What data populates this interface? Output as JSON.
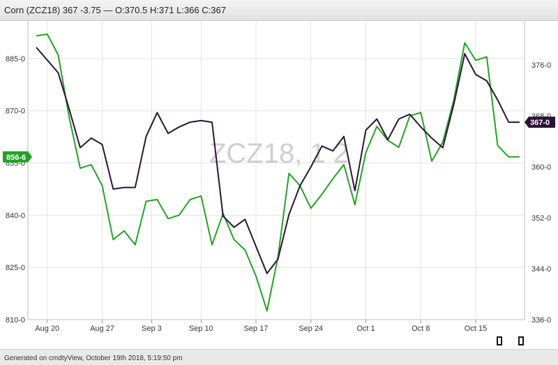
{
  "header": {
    "title": "Corn (ZCZ18) 367 -3.75 — O:370.5 H:371 L:366 C:367"
  },
  "footer": {
    "text": "Generated on cmdtyView, October 19th 2018, 5:19:50 pm"
  },
  "chart_data": {
    "type": "line",
    "watermark": "ZCZ18, 1 2",
    "grid": true,
    "x": [
      "Aug 17",
      "Aug 20",
      "Aug 21",
      "Aug 22",
      "Aug 23",
      "Aug 24",
      "Aug 27",
      "Aug 28",
      "Aug 29",
      "Aug 30",
      "Aug 31",
      "Sep 4",
      "Sep 5",
      "Sep 6",
      "Sep 7",
      "Sep 10",
      "Sep 11",
      "Sep 12",
      "Sep 13",
      "Sep 14",
      "Sep 17",
      "Sep 18",
      "Sep 19",
      "Sep 20",
      "Sep 21",
      "Sep 24",
      "Sep 25",
      "Sep 26",
      "Sep 27",
      "Sep 28",
      "Oct 1",
      "Oct 2",
      "Oct 3",
      "Oct 4",
      "Oct 5",
      "Oct 8",
      "Oct 9",
      "Oct 10",
      "Oct 11",
      "Oct 12",
      "Oct 15",
      "Oct 16",
      "Oct 17",
      "Oct 18",
      "Oct 19"
    ],
    "x_ticks": [
      "Aug 20",
      "Aug 27",
      "Sep 3",
      "Sep 10",
      "Sep 17",
      "Sep 24",
      "Oct 1",
      "Oct 8",
      "Oct 15"
    ],
    "left_axis": {
      "ticks": [
        "885-0",
        "870-0",
        "855-0",
        "840-0",
        "825-0",
        "810-0"
      ],
      "tick_values": [
        885,
        870,
        855,
        840,
        825,
        810
      ],
      "ylim": [
        810,
        895.8
      ]
    },
    "right_axis": {
      "ticks": [
        "376-0",
        "368-0",
        "360-0",
        "352-0",
        "344-0",
        "336-0"
      ],
      "tick_values": [
        376,
        368,
        360,
        352,
        344,
        336
      ],
      "ylim": [
        336,
        382.9
      ]
    },
    "series": [
      {
        "axis": "left",
        "color": "#22a322",
        "last_label": "856-6",
        "values": [
          891.5,
          892,
          886,
          868,
          853.5,
          854.5,
          848.5,
          833,
          835.5,
          831.5,
          844,
          844.5,
          839,
          840,
          844.5,
          845.5,
          831.5,
          840.5,
          833,
          830,
          822.5,
          812.5,
          828,
          852,
          848.5,
          842,
          846,
          850.5,
          854.5,
          843,
          858,
          865.5,
          861.5,
          859.5,
          868.5,
          869.5,
          855.5,
          861,
          873,
          889.5,
          884.5,
          885.5,
          860,
          856.75,
          856.75
        ]
      },
      {
        "axis": "right",
        "color": "#2b1237",
        "last_label": "367-0",
        "values": [
          378.75,
          376.75,
          374.75,
          369,
          363,
          364.5,
          363.5,
          356.5,
          356.75,
          356.75,
          364.75,
          368.5,
          365.25,
          366.25,
          367,
          367.25,
          367,
          352.25,
          350.5,
          351.75,
          347.5,
          343.25,
          345.5,
          352.5,
          357,
          360,
          363.25,
          362.5,
          364.75,
          356.25,
          365.75,
          367.5,
          364.25,
          367.5,
          368.25,
          366.25,
          364.5,
          363,
          369.75,
          377.75,
          374.5,
          373.5,
          370.5,
          367,
          367
        ]
      }
    ]
  }
}
